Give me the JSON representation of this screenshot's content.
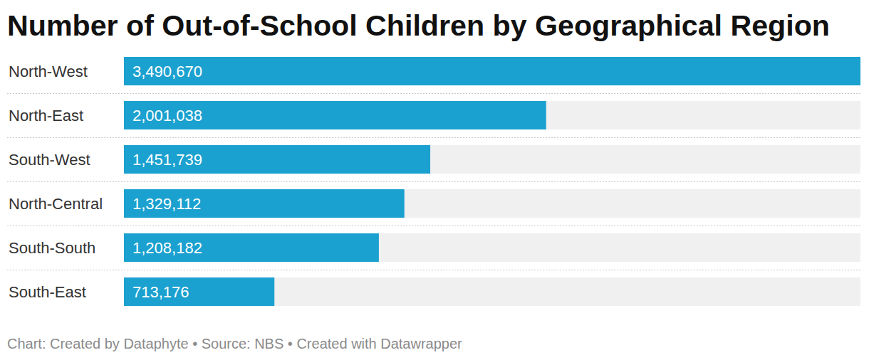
{
  "chart_data": {
    "type": "bar",
    "orientation": "horizontal",
    "title": "Number of Out-of-School Children by Geographical Region",
    "caption": "Chart: Created by Dataphyte • Source: NBS • Created with Datawrapper",
    "categories": [
      "North-West",
      "North-East",
      "South-West",
      "North-Central",
      "South-South",
      "South-East"
    ],
    "values": [
      3490670,
      2001038,
      1451739,
      1329112,
      1208182,
      713176
    ],
    "value_labels": [
      "3,490,670",
      "2,001,038",
      "1,451,739",
      "1,329,112",
      "1,208,182",
      "713,176"
    ],
    "color": "#1ba1cf",
    "xlim": [
      0,
      3490670
    ],
    "data_labels": true,
    "tick_labels": false,
    "grid": false
  }
}
